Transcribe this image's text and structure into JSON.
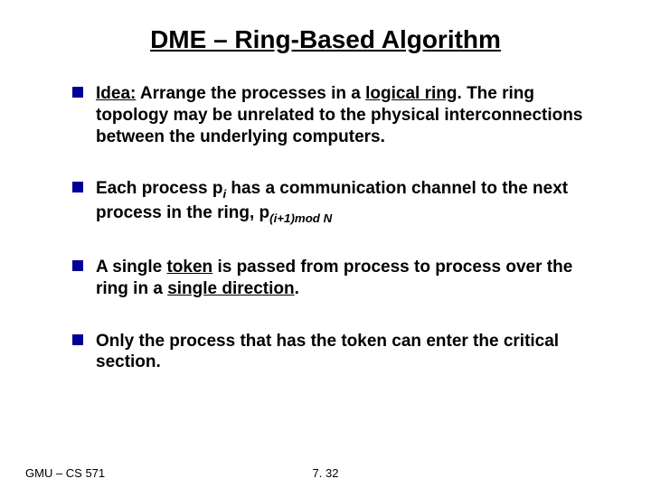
{
  "title": "DME – Ring-Based Algorithm",
  "bullets": {
    "b1_idea_label": "Idea:",
    "b1_phrase1": " Arrange the processes in a ",
    "b1_u1": "logical ring",
    "b1_rest": ". The ring topology may be unrelated to the physical interconnections between the underlying computers.",
    "b2_part1": "Each process p",
    "b2_sub1": "i",
    "b2_part2": "  has a communication channel to the next process in the ring, p",
    "b2_sub2": "(i+1)mod N",
    "b3_part1": "A single ",
    "b3_u1": "token",
    "b3_part2": " is passed from process to process over the ring in a ",
    "b3_u2": "single direction",
    "b3_part3": ".",
    "b4": "Only the process that has the token can enter the critical section."
  },
  "footer": {
    "left": "GMU – CS 571",
    "center": "7. 32"
  },
  "colors": {
    "bullet_marker": "#000099",
    "text": "#000000",
    "background": "#ffffff"
  }
}
